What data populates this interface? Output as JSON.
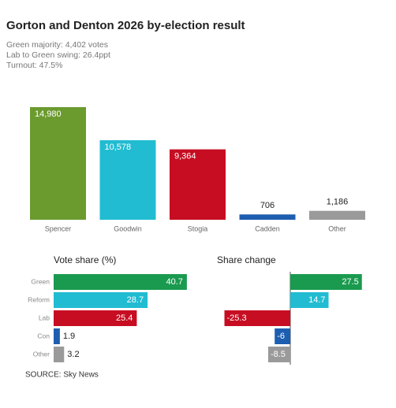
{
  "header": {
    "title": "Gorton and Denton 2026 by-election result",
    "notes": [
      "Green majority: 4,402 votes",
      "Lab to Green swing: 26.4ppt",
      "Turnout: 47.5%"
    ]
  },
  "chart_data": [
    {
      "type": "bar",
      "categories": [
        "Spencer",
        "Goodwin",
        "Stogia",
        "Cadden",
        "Other"
      ],
      "values": [
        14980,
        10578,
        9364,
        706,
        1186
      ],
      "value_labels": [
        "14,980",
        "10,578",
        "9,364",
        "706",
        "1,186"
      ],
      "colors": [
        "#6b9b2f",
        "#21bcd1",
        "#c70d22",
        "#1d5eb0",
        "#9a9a9a"
      ]
    },
    {
      "type": "hbar",
      "title": "Vote share (%)",
      "categories": [
        "Green",
        "Reform",
        "Lab",
        "Con",
        "Other"
      ],
      "values": [
        40.7,
        28.7,
        25.4,
        1.9,
        3.2
      ],
      "colors": [
        "#1a9a4f",
        "#21bcd1",
        "#c70d22",
        "#1d5eb0",
        "#9a9a9a"
      ]
    },
    {
      "type": "hbar-diverging",
      "title": "Share change",
      "values": [
        27.5,
        14.7,
        -25.3,
        -6,
        -8.5
      ],
      "colors": [
        "#1a9a4f",
        "#21bcd1",
        "#c70d22",
        "#1d5eb0",
        "#9a9a9a"
      ]
    }
  ],
  "source": "SOURCE: Sky News"
}
